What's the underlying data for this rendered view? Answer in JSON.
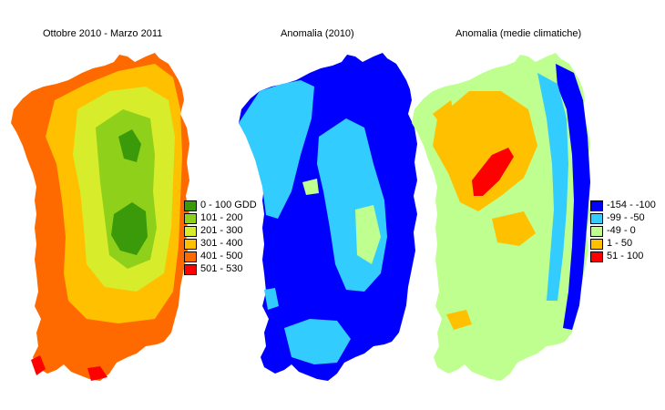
{
  "panels": [
    {
      "title": "Ottobre 2010 - Marzo 2011"
    },
    {
      "title": "Anomalia (2010)"
    },
    {
      "title": "Anomalia (medie climatiche)"
    }
  ],
  "legend_gdd": [
    {
      "label": "0 - 100 GDD",
      "color": "#3a9a0a"
    },
    {
      "label": "101 - 200",
      "color": "#8fd11a"
    },
    {
      "label": "201 - 300",
      "color": "#d7ec2a"
    },
    {
      "label": "301 - 400",
      "color": "#ffc000"
    },
    {
      "label": "401 - 500",
      "color": "#ff6a00"
    },
    {
      "label": "501 - 530",
      "color": "#ff0000"
    }
  ],
  "legend_anomaly": [
    {
      "label": "-154 - -100",
      "color": "#0000ff"
    },
    {
      "label": "-99 - -50",
      "color": "#33ccff"
    },
    {
      "label": "-49 - 0",
      "color": "#bfff8f"
    },
    {
      "label": "1 - 50",
      "color": "#ffc000"
    },
    {
      "label": "51 - 100",
      "color": "#ff0000"
    }
  ]
}
